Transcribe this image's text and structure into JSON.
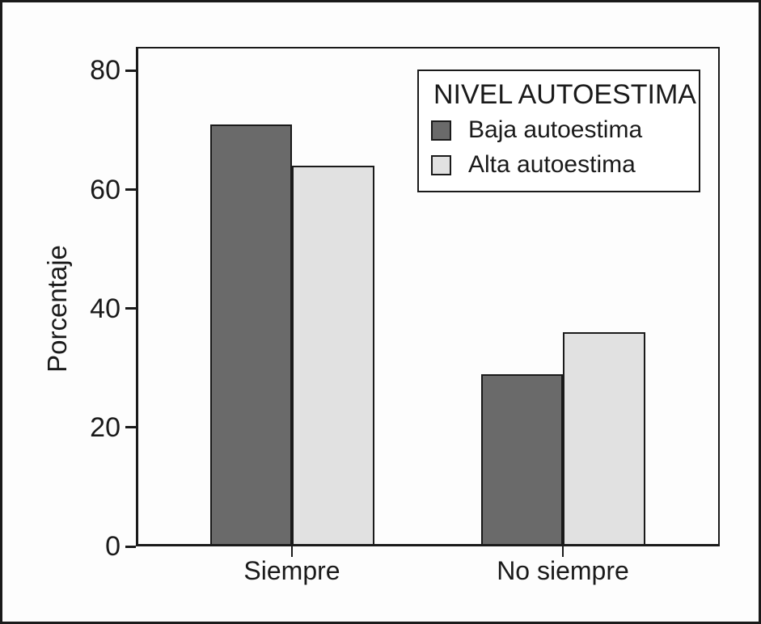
{
  "frame": {
    "background": "#fdfdfd",
    "border_color": "#1a1a1a"
  },
  "chart_data": {
    "type": "bar",
    "title": "",
    "xlabel": "",
    "ylabel": "Porcentaje",
    "categories": [
      "Siempre",
      "No siempre"
    ],
    "series": [
      {
        "name": "Baja autoestima",
        "color": "#6a6a6a",
        "values": [
          71,
          29
        ]
      },
      {
        "name": "Alta autoestima",
        "color": "#e1e1e1",
        "values": [
          64,
          36
        ]
      }
    ],
    "yticks": [
      0,
      20,
      40,
      60,
      80
    ],
    "ylim": [
      0,
      84
    ],
    "grid": false,
    "bar_border_color": "#1a1a1a",
    "legend": {
      "title": "NIVEL AUTOESTIMA",
      "position": "top-right"
    }
  }
}
